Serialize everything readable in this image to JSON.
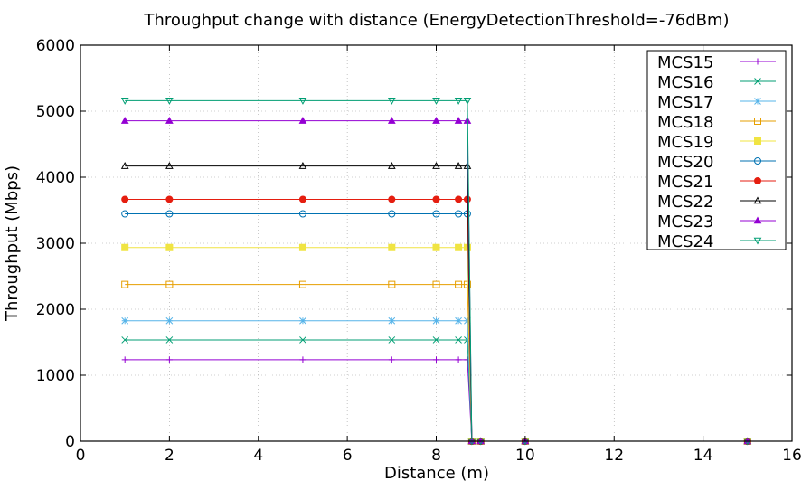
{
  "chart_data": {
    "type": "line",
    "title": "Throughput change with distance (EnergyDetectionThreshold=-76dBm)",
    "xlabel": "Distance (m)",
    "ylabel": "Throughput (Mbps)",
    "xlim": [
      0,
      16
    ],
    "ylim": [
      0,
      6000
    ],
    "xticks": [
      0,
      2,
      4,
      6,
      8,
      10,
      12,
      14,
      16
    ],
    "yticks": [
      0,
      1000,
      2000,
      3000,
      4000,
      5000,
      6000
    ],
    "grid": true,
    "legend_position": "top-right",
    "x": [
      1,
      2,
      5,
      7,
      8,
      8.5,
      8.7,
      8.8,
      9,
      10,
      15
    ],
    "series": [
      {
        "name": "MCS15",
        "color": "#9400d3",
        "marker": "plus",
        "values": [
          1235,
          1235,
          1235,
          1235,
          1235,
          1235,
          1235,
          0,
          0,
          0,
          0
        ]
      },
      {
        "name": "MCS16",
        "color": "#009e73",
        "marker": "cross",
        "values": [
          1535,
          1535,
          1535,
          1535,
          1535,
          1535,
          1535,
          0,
          0,
          0,
          0
        ]
      },
      {
        "name": "MCS17",
        "color": "#56b4e9",
        "marker": "asterisk",
        "values": [
          1825,
          1825,
          1825,
          1825,
          1825,
          1825,
          1825,
          0,
          0,
          0,
          0
        ]
      },
      {
        "name": "MCS18",
        "color": "#e69f00",
        "marker": "square-open",
        "values": [
          2375,
          2375,
          2375,
          2375,
          2375,
          2375,
          2375,
          0,
          0,
          0,
          0
        ]
      },
      {
        "name": "MCS19",
        "color": "#f0e442",
        "marker": "square-filled",
        "values": [
          2935,
          2935,
          2935,
          2935,
          2935,
          2935,
          2935,
          0,
          0,
          0,
          0
        ]
      },
      {
        "name": "MCS20",
        "color": "#0072b2",
        "marker": "circle-open",
        "values": [
          3445,
          3445,
          3445,
          3445,
          3445,
          3445,
          3445,
          0,
          0,
          0,
          0
        ]
      },
      {
        "name": "MCS21",
        "color": "#e51e10",
        "marker": "circle-filled",
        "values": [
          3665,
          3665,
          3665,
          3665,
          3665,
          3665,
          3665,
          0,
          0,
          0,
          0
        ]
      },
      {
        "name": "MCS22",
        "color": "#000000",
        "marker": "triangle-up-open",
        "values": [
          4170,
          4170,
          4170,
          4170,
          4170,
          4170,
          4170,
          0,
          0,
          0,
          0
        ]
      },
      {
        "name": "MCS23",
        "color": "#9400d3",
        "marker": "triangle-up-filled",
        "values": [
          4855,
          4855,
          4855,
          4855,
          4855,
          4855,
          4855,
          0,
          0,
          0,
          0
        ]
      },
      {
        "name": "MCS24",
        "color": "#009e73",
        "marker": "triangle-down-open",
        "values": [
          5160,
          5160,
          5160,
          5160,
          5160,
          5160,
          5160,
          0,
          0,
          0,
          0
        ]
      }
    ]
  }
}
